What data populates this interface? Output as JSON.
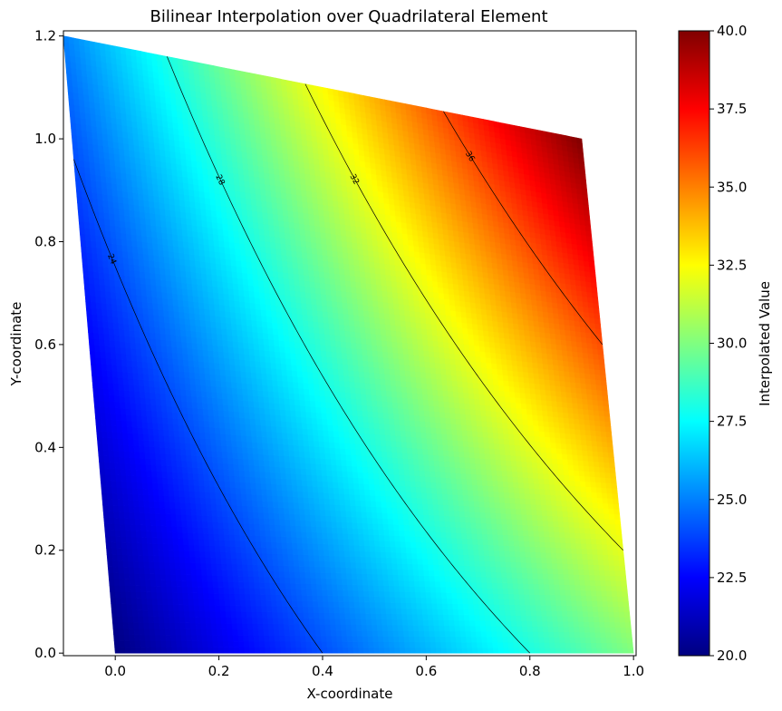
{
  "chart_data": {
    "type": "heatmap",
    "title": "Bilinear Interpolation over Quadrilateral Element",
    "xlabel": "X-coordinate",
    "ylabel": "Y-coordinate",
    "xlim": [
      -0.1,
      1.005
    ],
    "ylim": [
      -0.005,
      1.21
    ],
    "xticks": [
      "0.0",
      "0.2",
      "0.4",
      "0.6",
      "0.8",
      "1.0"
    ],
    "yticks": [
      "0.0",
      "0.2",
      "0.4",
      "0.6",
      "0.8",
      "1.0",
      "1.2"
    ],
    "element_nodes": [
      {
        "x": 0.0,
        "y": 0.0,
        "value": 20
      },
      {
        "x": 1.0,
        "y": 0.0,
        "value": 30
      },
      {
        "x": 0.9,
        "y": 1.0,
        "value": 40
      },
      {
        "x": -0.1,
        "y": 1.2,
        "value": 25
      }
    ],
    "colormap": "jet",
    "colorbar": {
      "label": "Interpolated Value",
      "range": [
        20,
        40
      ],
      "ticks": [
        "20.0",
        "22.5",
        "25.0",
        "27.5",
        "30.0",
        "32.5",
        "35.0",
        "37.5",
        "40.0"
      ]
    },
    "contour_levels": [
      24,
      28,
      32,
      36
    ],
    "contour_labels": [
      "24",
      "28",
      "32",
      "36"
    ],
    "grid": false
  }
}
